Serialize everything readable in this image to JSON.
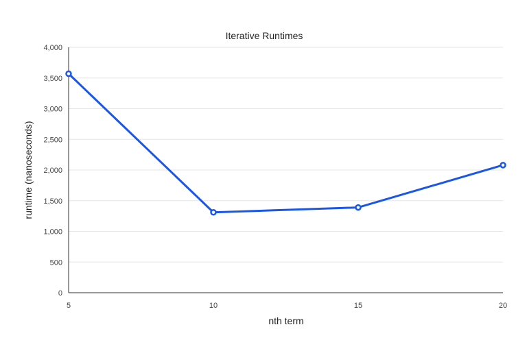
{
  "chart_data": {
    "type": "line",
    "title": "Iterative Runtimes",
    "xlabel": "nth term",
    "ylabel": "runtime (nanoseconds)",
    "x": [
      5,
      10,
      15,
      20
    ],
    "x_tick_labels": [
      "5",
      "10",
      "15",
      "20"
    ],
    "y_tick_values": [
      0,
      500,
      1000,
      1500,
      2000,
      2500,
      3000,
      3500,
      4000
    ],
    "y_tick_labels": [
      "0",
      "500",
      "1,000",
      "1,500",
      "2,000",
      "2,500",
      "3,000",
      "3,500",
      "4,000"
    ],
    "ylim": [
      0,
      4000
    ],
    "xlim": [
      5,
      20
    ],
    "grid": true,
    "legend": "none",
    "series": [
      {
        "values": [
          3570,
          1310,
          1390,
          2080
        ],
        "color": "#1a56e8"
      }
    ]
  }
}
